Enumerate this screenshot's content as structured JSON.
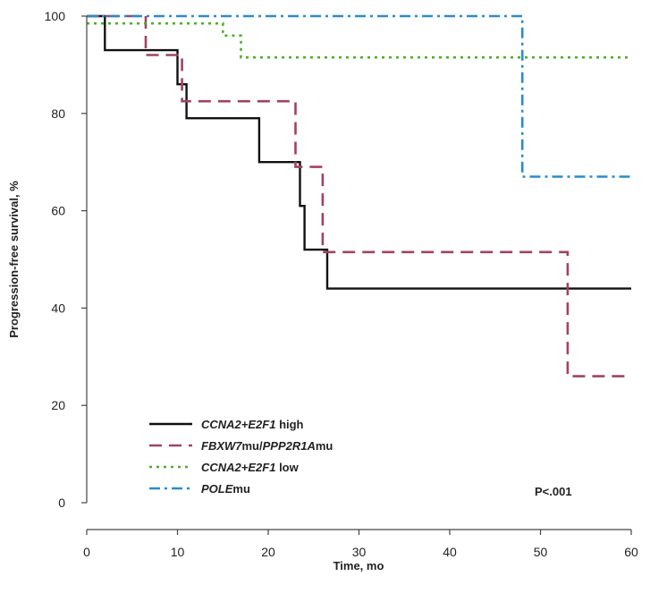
{
  "chart_data": {
    "type": "line",
    "subtype": "kaplan-meier step",
    "xlabel": "Time, mo",
    "ylabel": "Progression-free survival, %",
    "xlim": [
      0,
      60
    ],
    "ylim": [
      0,
      100
    ],
    "xticks": [
      0,
      10,
      20,
      30,
      40,
      50,
      60
    ],
    "yticks": [
      0,
      20,
      40,
      60,
      80,
      100
    ],
    "grid": false,
    "legend_position": "bottom-left",
    "annotation": "P<.001",
    "series": [
      {
        "name": "CCNA2+E2F1 high",
        "name_parts": [
          [
            "CCNA2+E2F1",
            true
          ],
          [
            " high",
            false
          ]
        ],
        "color": "#111111",
        "style": "solid",
        "points": [
          [
            0,
            100
          ],
          [
            2,
            100
          ],
          [
            2,
            93
          ],
          [
            10,
            93
          ],
          [
            10,
            86
          ],
          [
            11,
            86
          ],
          [
            11,
            79
          ],
          [
            19,
            79
          ],
          [
            19,
            70
          ],
          [
            23.5,
            70
          ],
          [
            23.5,
            61
          ],
          [
            24,
            61
          ],
          [
            24,
            52
          ],
          [
            26.5,
            52
          ],
          [
            26.5,
            44
          ],
          [
            60,
            44
          ]
        ]
      },
      {
        "name": "FBXW7mu/PPP2R1Amu",
        "name_parts": [
          [
            "FBXW7",
            true
          ],
          [
            "mu/",
            false
          ],
          [
            "PPP2R1A",
            true
          ],
          [
            "mu",
            false
          ]
        ],
        "color": "#a0435f",
        "style": "dash",
        "points": [
          [
            0,
            100
          ],
          [
            6.5,
            100
          ],
          [
            6.5,
            92
          ],
          [
            10.5,
            92
          ],
          [
            10.5,
            82.5
          ],
          [
            23,
            82.5
          ],
          [
            23,
            69
          ],
          [
            26,
            69
          ],
          [
            26,
            51.5
          ],
          [
            53,
            51.5
          ],
          [
            53,
            26
          ],
          [
            60,
            26
          ]
        ]
      },
      {
        "name": "CCNA2+E2F1 low",
        "name_parts": [
          [
            "CCNA2+E2F1",
            true
          ],
          [
            " low",
            false
          ]
        ],
        "color": "#4caf28",
        "style": "dot",
        "points": [
          [
            0,
            98.5
          ],
          [
            15,
            98.5
          ],
          [
            15,
            96
          ],
          [
            17,
            96
          ],
          [
            17,
            91.5
          ],
          [
            60,
            91.5
          ]
        ]
      },
      {
        "name": "POLEmu",
        "name_parts": [
          [
            "POLE",
            true
          ],
          [
            "mu",
            false
          ]
        ],
        "color": "#2a8ccc",
        "style": "dashdot",
        "points": [
          [
            0,
            100
          ],
          [
            48,
            100
          ],
          [
            48,
            67
          ],
          [
            60,
            67
          ]
        ]
      }
    ]
  }
}
